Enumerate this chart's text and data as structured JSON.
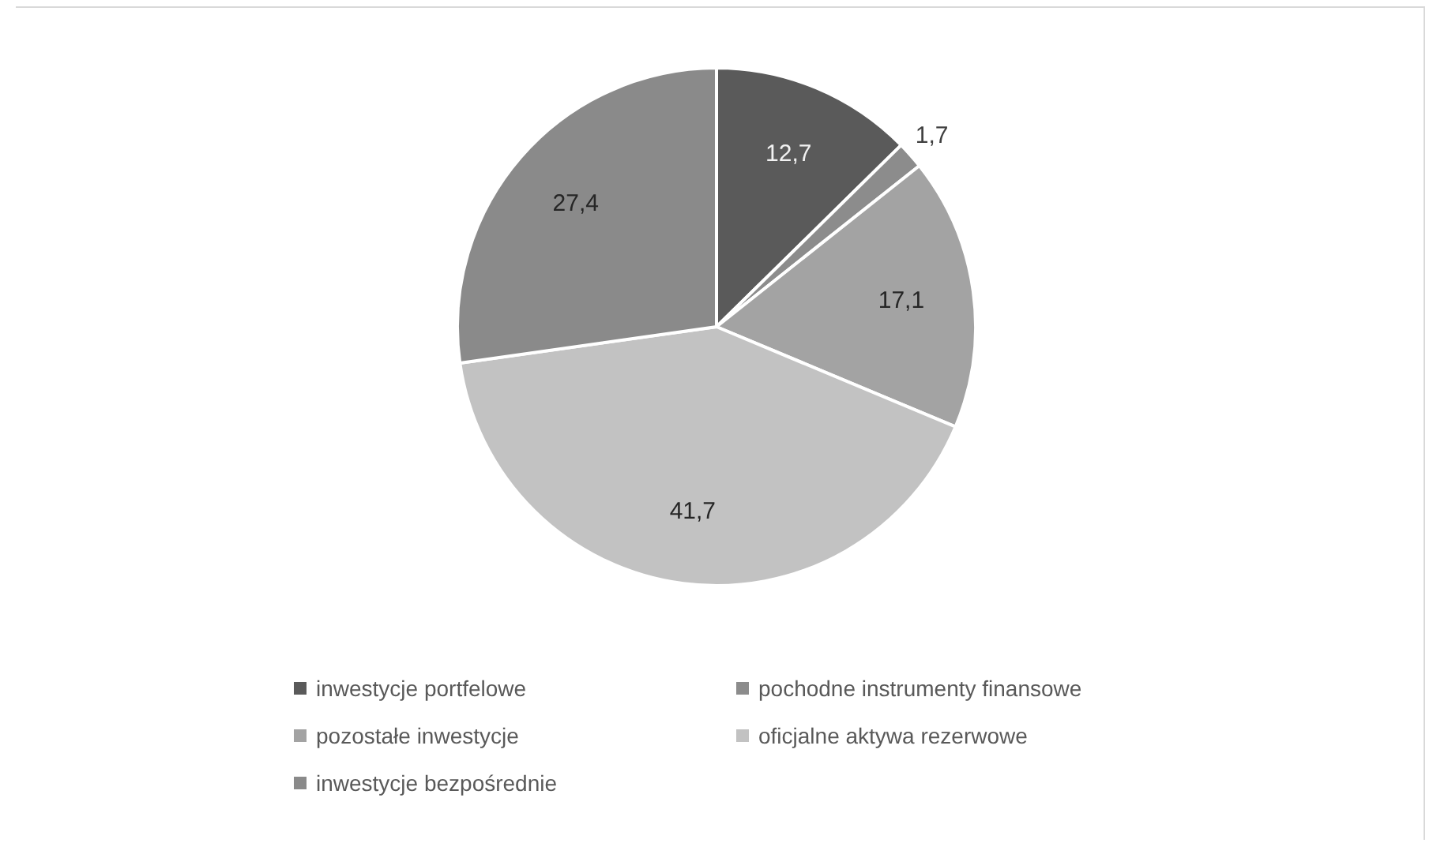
{
  "chart_data": {
    "type": "pie",
    "categories": [
      "inwestycje portfelowe",
      "pochodne instrumenty finansowe",
      "pozostałe inwestycje",
      "oficjalne aktywa rezerwowe",
      "inwestycje bezpośrednie"
    ],
    "values": [
      12.7,
      1.7,
      17.1,
      41.7,
      27.4
    ],
    "colors": [
      "#5a5a5a",
      "#8c8c8c",
      "#a3a3a3",
      "#c2c2c2",
      "#8a8a8a"
    ],
    "value_labels": [
      "12,7",
      "1,7",
      "17,1",
      "41,7",
      "27,4"
    ],
    "legend": "bottom"
  }
}
